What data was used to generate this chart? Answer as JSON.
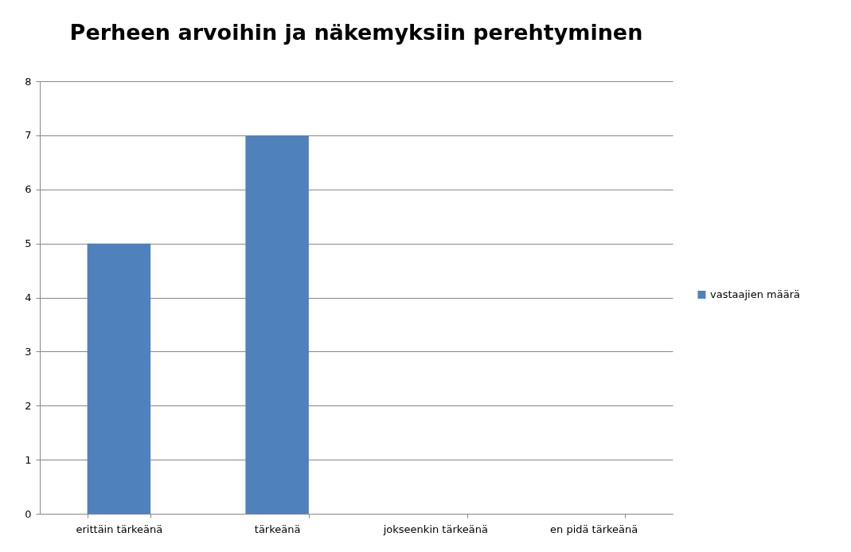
{
  "chart_data": {
    "type": "bar",
    "title": "Perheen arvoihin ja näkemyksiin perehtyminen",
    "categories": [
      "erittäin tärkeänä",
      "tärkeänä",
      "jokseenkin tärkeänä",
      "en pidä tärkeänä"
    ],
    "series": [
      {
        "name": "vastaajien määrä",
        "color": "#4f81bd",
        "values": [
          5,
          7,
          0,
          0
        ]
      }
    ],
    "ylim": [
      0,
      8
    ],
    "yticks": [
      0,
      1,
      2,
      3,
      4,
      5,
      6,
      7,
      8
    ],
    "grid": "y",
    "legend": "right"
  }
}
